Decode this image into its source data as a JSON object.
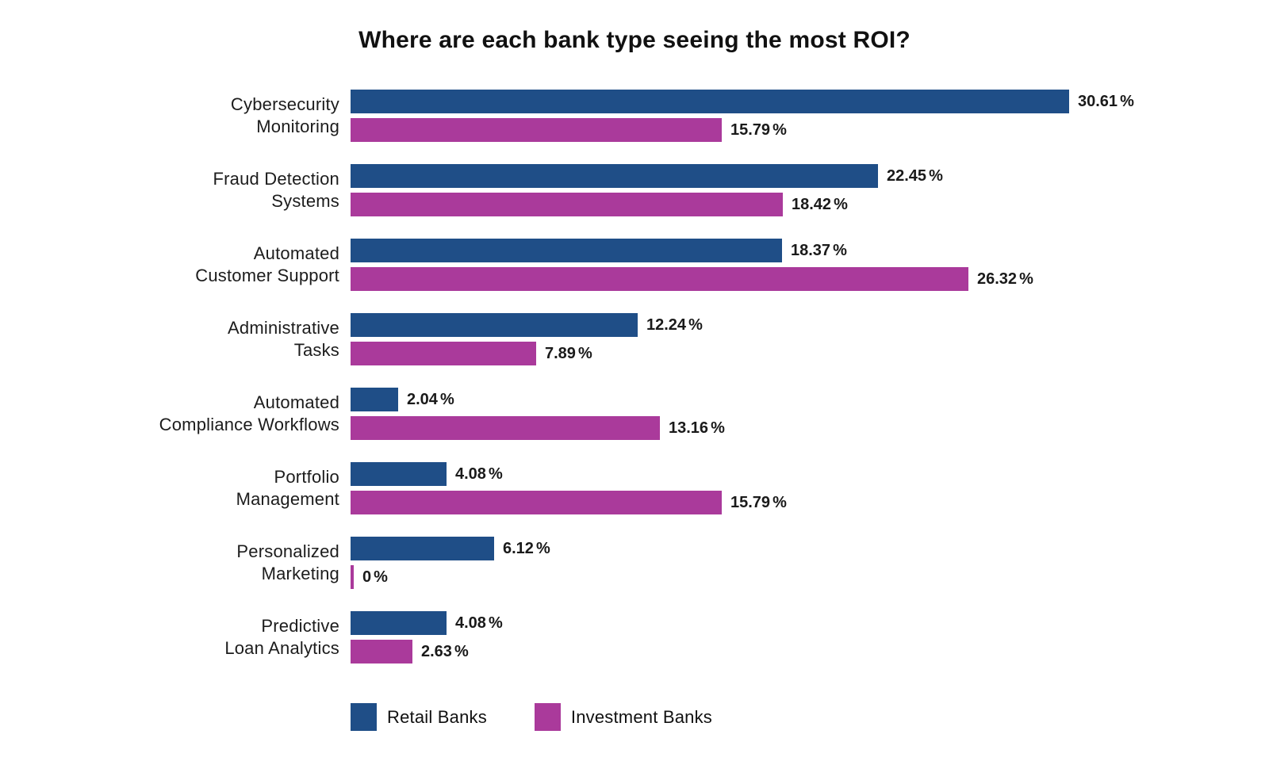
{
  "title": "Where are each bank type seeing the most ROI?",
  "chart_data": {
    "type": "bar",
    "orientation": "horizontal",
    "title": "Where are each bank type seeing the most ROI?",
    "categories": [
      "Cybersecurity Monitoring",
      "Fraud Detection Systems",
      "Automated Customer Support",
      "Administrative Tasks",
      "Automated Compliance Workflows",
      "Portfolio Management",
      "Personalized Marketing",
      "Predictive Loan Analytics"
    ],
    "category_label_lines": [
      [
        "Cybersecurity",
        "Monitoring"
      ],
      [
        "Fraud Detection",
        "Systems"
      ],
      [
        "Automated",
        "Customer Support"
      ],
      [
        "Administrative",
        "Tasks"
      ],
      [
        "Automated",
        "Compliance Workflows"
      ],
      [
        "Portfolio",
        "Management"
      ],
      [
        "Personalized",
        "Marketing"
      ],
      [
        "Predictive",
        "Loan Analytics"
      ]
    ],
    "series": [
      {
        "name": "Retail Banks",
        "color": "#1F4E87",
        "values": [
          30.61,
          22.45,
          18.37,
          12.24,
          2.04,
          4.08,
          6.12,
          4.08
        ],
        "value_labels": [
          "30.61%",
          "22.45%",
          "18.37%",
          "12.24%",
          "2.04%",
          "4.08%",
          "6.12%",
          "4.08%"
        ]
      },
      {
        "name": "Investment Banks",
        "color": "#AA3A9B",
        "values": [
          15.79,
          18.42,
          26.32,
          7.89,
          13.16,
          15.79,
          0,
          2.63
        ],
        "value_labels": [
          "15.79%",
          "18.42%",
          "26.32%",
          "7.89%",
          "13.16%",
          "15.79%",
          "0%",
          "2.63%"
        ]
      }
    ],
    "xlim": [
      0,
      31
    ],
    "grid": false,
    "value_labels_shown": true,
    "legend_position": "bottom"
  },
  "legend": {
    "items": [
      {
        "label": "Retail Banks",
        "color": "#1F4E87"
      },
      {
        "label": "Investment Banks",
        "color": "#AA3A9B"
      }
    ]
  },
  "colors": {
    "retail_blue": "#1F4E87",
    "investment_magenta": "#AA3A9B",
    "text": "#1a1a1a",
    "background": "#ffffff"
  }
}
